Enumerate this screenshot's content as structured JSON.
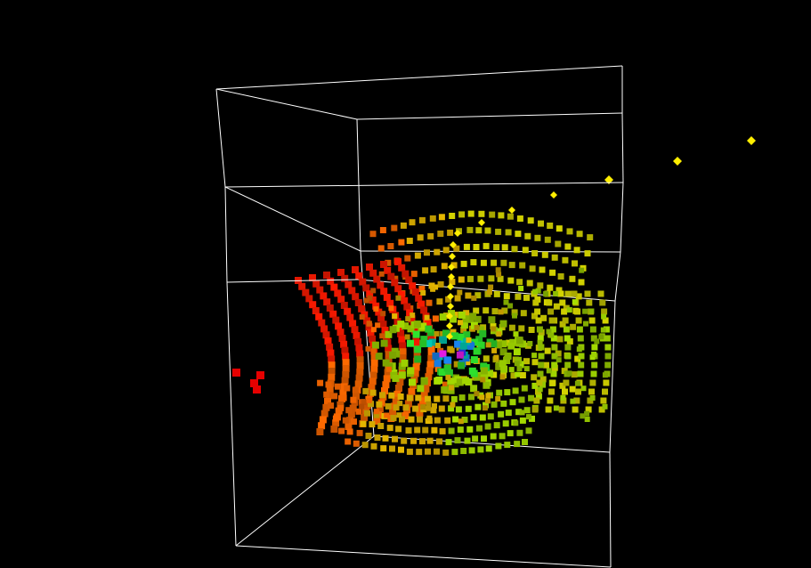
{
  "scene": {
    "background_color": "#000000",
    "box_color": "#ffffff",
    "marker_color": "#ffee00",
    "voxel_palette": [
      "#ff1a00",
      "#ff6a00",
      "#e6b800",
      "#d4d400",
      "#a8e000",
      "#2ee62e",
      "#00e0c8",
      "#1a8cff",
      "#3030ff",
      "#ff20ff"
    ],
    "stray_voxel_color": "#e60000"
  }
}
